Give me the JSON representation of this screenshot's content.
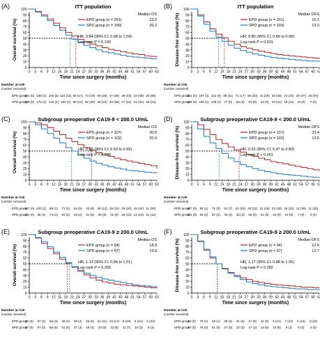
{
  "common": {
    "xlabel": "Time since surgery (months)",
    "x_ticks": [
      0,
      3,
      6,
      9,
      12,
      15,
      18,
      21,
      24,
      27,
      30,
      33,
      36,
      39,
      42,
      45,
      48,
      51,
      54,
      57,
      60,
      63
    ],
    "y_ticks": [
      "0",
      "10",
      "20",
      "30",
      "40",
      "50",
      "60",
      "70",
      "80",
      "90",
      "100"
    ],
    "risk_title": "Number at risk",
    "risk_subtitle": "(number censored)",
    "risk_ticks": [
      0,
      6,
      12,
      18,
      24,
      30,
      36,
      42,
      48,
      54,
      60
    ],
    "colors": {
      "epd": "#b22222",
      "spd": "#1f78b4"
    }
  },
  "chart_data": [
    {
      "type": "line",
      "panel_label": "(A)",
      "title": "ITT population",
      "ylabel": "Overall survival (%)",
      "xlim": [
        0,
        63
      ],
      "ylim": [
        0,
        100
      ],
      "legend_title": "Median OS",
      "legend": [
        {
          "label": "EPD group (n = 201)",
          "value": "23.0"
        },
        {
          "label": "SPD group (n = 199)",
          "value": "20.2"
        }
      ],
      "hr_text": "HR, 0.84 (95% CI, 0.68 to 1.04)",
      "logrank_text": "Log-rank P = 0.100",
      "medians": [
        23.0,
        20.2
      ],
      "series": [
        {
          "name": "EPD group",
          "x": [
            0,
            3,
            6,
            9,
            12,
            15,
            18,
            21,
            24,
            27,
            30,
            33,
            36,
            39,
            42,
            45,
            48,
            51,
            54,
            57,
            60,
            63
          ],
          "y": [
            100,
            96,
            90,
            83,
            76,
            68,
            60,
            54,
            48,
            44,
            40,
            37,
            34,
            31,
            29,
            27,
            25,
            23,
            22,
            20,
            19,
            18
          ]
        },
        {
          "name": "SPD group",
          "x": [
            0,
            3,
            6,
            9,
            12,
            15,
            18,
            21,
            24,
            27,
            30,
            33,
            36,
            39,
            42,
            45,
            48,
            51,
            54,
            57,
            60,
            63
          ],
          "y": [
            100,
            95,
            88,
            80,
            72,
            64,
            55,
            48,
            43,
            38,
            34,
            30,
            27,
            25,
            23,
            21,
            19,
            18,
            17,
            16,
            15,
            14
          ]
        }
      ],
      "risk_table": [
        {
          "name": "EPD group",
          "values": [
            "201 (0)",
            "188 (2)",
            "154 (5)",
            "116 (11)",
            "92 (17)",
            "74 (19)",
            "59 (26)",
            "47 (35)",
            "39 (43)",
            "33 (48)",
            "20 (58)"
          ]
        },
        {
          "name": "SPD group",
          "values": [
            "199 (0)",
            "175 (2)",
            "140 (2)",
            "105 (2)",
            "80 (10)",
            "60 (20)",
            "48 (23)",
            "34 (30)",
            "27 (31)",
            "21 (33)",
            "18 (23)"
          ]
        }
      ]
    },
    {
      "type": "line",
      "panel_label": "(B)",
      "title": "ITT population",
      "ylabel": "Disease-free survival (%)",
      "xlim": [
        0,
        63
      ],
      "ylim": [
        0,
        100
      ],
      "legend_title": "Median DFS",
      "legend": [
        {
          "label": "EPD group (n = 201)",
          "value": "16.1"
        },
        {
          "label": "SPD group (n = 199)",
          "value": "13.2"
        }
      ],
      "hr_text": "HR, 0.80 (95% CI, 0.66 to 0.98)",
      "logrank_text": "Log-rank P = 0.031",
      "medians": [
        16.1,
        13.2
      ],
      "series": [
        {
          "name": "EPD group",
          "x": [
            0,
            3,
            6,
            9,
            12,
            15,
            18,
            21,
            24,
            27,
            30,
            33,
            36,
            39,
            42,
            45,
            48,
            51,
            54,
            57,
            60,
            63
          ],
          "y": [
            100,
            90,
            78,
            66,
            57,
            51,
            45,
            40,
            36,
            33,
            30,
            28,
            26,
            24,
            22,
            21,
            20,
            19,
            18,
            17,
            16,
            15
          ]
        },
        {
          "name": "SPD group",
          "x": [
            0,
            3,
            6,
            9,
            12,
            15,
            18,
            21,
            24,
            27,
            30,
            33,
            36,
            39,
            42,
            45,
            48,
            51,
            54,
            57,
            60,
            63
          ],
          "y": [
            100,
            88,
            74,
            62,
            52,
            45,
            38,
            33,
            29,
            26,
            23,
            21,
            19,
            17,
            16,
            15,
            14,
            13,
            12,
            11,
            11,
            10
          ]
        }
      ],
      "risk_table": [
        {
          "name": "EPD group",
          "values": [
            "201 (0)",
            "167 (2)",
            "121 (5)",
            "88 (11)",
            "71 (17)",
            "55 (20)",
            "41 (25)",
            "33 (30)",
            "24 (34)",
            "20 (37)",
            "16 (40)"
          ]
        },
        {
          "name": "SPD group",
          "values": [
            "199 (0)",
            "162 (1)",
            "108 (1)",
            "77 (0)",
            "56 (6)",
            "43 (8)",
            "34 (8)",
            "23 (11)",
            "18 (12)",
            "13 (0)",
            "7 (0)"
          ]
        }
      ]
    },
    {
      "type": "line",
      "panel_label": "(C)",
      "title": "Subgroup preoperative CA19-9 < 200.0 U/mL",
      "ylabel": "Overall survival (%)",
      "xlim": [
        0,
        63
      ],
      "ylim": [
        0,
        100
      ],
      "legend_title": "Median OS",
      "legend": [
        {
          "label": "EPD group (n = 107)",
          "value": "30.8"
        },
        {
          "label": "SPD group (n = 102)",
          "value": "20.9"
        }
      ],
      "hr_text": "HR, 0.68 (95% CI, 0.50 to 0.92)",
      "logrank_text": "Log-rank P = 0.009",
      "medians": [
        30.8,
        20.9
      ],
      "series": [
        {
          "name": "EPD group",
          "x": [
            0,
            3,
            6,
            9,
            12,
            15,
            18,
            21,
            24,
            27,
            30,
            33,
            36,
            39,
            42,
            45,
            48,
            51,
            54,
            57,
            60,
            63
          ],
          "y": [
            100,
            98,
            95,
            90,
            84,
            78,
            72,
            66,
            61,
            56,
            51,
            47,
            44,
            41,
            38,
            35,
            33,
            31,
            29,
            27,
            25,
            20
          ]
        },
        {
          "name": "SPD group",
          "x": [
            0,
            3,
            6,
            9,
            12,
            15,
            18,
            21,
            24,
            27,
            30,
            33,
            36,
            39,
            42,
            45,
            48,
            51,
            54,
            57,
            60,
            63
          ],
          "y": [
            100,
            95,
            88,
            80,
            72,
            64,
            56,
            50,
            44,
            38,
            33,
            29,
            26,
            23,
            21,
            19,
            17,
            16,
            15,
            14,
            13,
            12
          ]
        }
      ],
      "risk_table": [
        {
          "name": "EPD group",
          "values": [
            "107 (0)",
            "103 (1)",
            "88 (1)",
            "71 (4)",
            "54 (5)",
            "43 (8)",
            "36 (12)",
            "29 (16)",
            "25 (20)",
            "15 (22)",
            "11 (26)"
          ]
        },
        {
          "name": "SPD group",
          "values": [
            "102 (0)",
            "95 (1)",
            "74 (1)",
            "54 (2)",
            "43 (2)",
            "31 (5)",
            "25 (6)",
            "21 (8)",
            "16 (12)",
            "14 (13)",
            "11 (12)"
          ]
        }
      ]
    },
    {
      "type": "line",
      "panel_label": "(D)",
      "title": "Subgroup preoperative CA19-9 < 200.0 U/mL",
      "ylabel": "Disease-free survival (%)",
      "xlim": [
        0,
        63
      ],
      "ylim": [
        0,
        100
      ],
      "legend_title": "Median DFS",
      "legend": [
        {
          "label": "EPD group (n = 107)",
          "value": "23.4"
        },
        {
          "label": "SPD group (n = 102)",
          "value": "13.5"
        }
      ],
      "hr_text": "HR, 0.62 (95% CI, 0.47 to 0.83)",
      "logrank_text": "Log-rank P < 0.001",
      "medians": [
        23.4,
        13.5
      ],
      "series": [
        {
          "name": "EPD group",
          "x": [
            0,
            3,
            6,
            9,
            12,
            15,
            18,
            21,
            24,
            27,
            30,
            33,
            36,
            39,
            42,
            45,
            48,
            51,
            54,
            57,
            60,
            63
          ],
          "y": [
            100,
            95,
            87,
            78,
            70,
            63,
            57,
            52,
            48,
            44,
            41,
            38,
            35,
            32,
            30,
            28,
            26,
            24,
            22,
            20,
            18,
            16
          ]
        },
        {
          "name": "SPD group",
          "x": [
            0,
            3,
            6,
            9,
            12,
            15,
            18,
            21,
            24,
            27,
            30,
            33,
            36,
            39,
            42,
            45,
            48,
            51,
            54,
            57,
            60,
            63
          ],
          "y": [
            100,
            88,
            75,
            64,
            54,
            46,
            38,
            32,
            27,
            23,
            20,
            17,
            15,
            13,
            11,
            10,
            9,
            8,
            7,
            6,
            5,
            4
          ]
        }
      ],
      "risk_table": [
        {
          "name": "EPD group",
          "values": [
            "107 (0)",
            "95 (1)",
            "71 (3)",
            "61 (7)",
            "51 (10)",
            "40 (11)",
            "31 (16)",
            "23 (18)",
            "16 (22)",
            "12 (26)",
            "11 (26)"
          ]
        },
        {
          "name": "SPD group",
          "values": [
            "102 (0)",
            "83 (1)",
            "57 (2)",
            "40 (2)",
            "32 (3)",
            "26 (2)",
            "21 (5)",
            "16 (8)",
            "10 (9)",
            "7 (0)",
            "3 (0)"
          ]
        }
      ]
    },
    {
      "type": "line",
      "panel_label": "(E)",
      "title": "Subgroup preoperative CA19-9 ≥ 200.0 U/mL",
      "ylabel": "Overall survival (%)",
      "xlim": [
        0,
        63
      ],
      "ylim": [
        0,
        100
      ],
      "legend_title": "Median OS",
      "legend": [
        {
          "label": "EPD group (n = 94)",
          "value": "18.8"
        },
        {
          "label": "SPD group (n = 97)",
          "value": "19.9"
        }
      ],
      "hr_text": "HR, 1.13 (95% CI, 0.84 to 1.51)",
      "logrank_text": "Log-rank P = 0.395",
      "medians": [
        18.8,
        19.9
      ],
      "series": [
        {
          "name": "EPD group",
          "x": [
            0,
            3,
            6,
            9,
            12,
            15,
            18,
            21,
            24,
            27,
            30,
            33,
            36,
            39,
            42,
            45,
            48,
            51,
            54,
            57,
            60,
            63
          ],
          "y": [
            100,
            94,
            85,
            76,
            67,
            58,
            51,
            44,
            37,
            31,
            26,
            22,
            19,
            17,
            15,
            14,
            13,
            12,
            11,
            10,
            9,
            8
          ]
        },
        {
          "name": "SPD group",
          "x": [
            0,
            3,
            6,
            9,
            12,
            15,
            18,
            21,
            24,
            27,
            30,
            33,
            36,
            39,
            42,
            45,
            48,
            51,
            54,
            57,
            60,
            63
          ],
          "y": [
            100,
            95,
            88,
            79,
            70,
            61,
            52,
            45,
            39,
            34,
            30,
            27,
            24,
            22,
            20,
            18,
            16,
            14,
            13,
            12,
            11,
            10
          ]
        }
      ],
      "risk_table": [
        {
          "name": "EPD group",
          "values": [
            "94 (0)",
            "87 (1)",
            "66 (3)",
            "48 (4)",
            "38 (4)",
            "26 (8)",
            "21 (11)",
            "14 (17)",
            "8 (19)",
            "6 (21)",
            "2 (23)"
          ]
        },
        {
          "name": "SPD group",
          "values": [
            "97 (0)",
            "87 (0)",
            "66 (0)",
            "51 (0)",
            "37 (3)",
            "29 (4)",
            "23 (5)",
            "13 (8)",
            "11 (7)",
            "10 (3)",
            "6 (3)"
          ]
        }
      ]
    },
    {
      "type": "line",
      "panel_label": "(F)",
      "title": "Subgroup preoperative CA19-9 ≥ 200.0 U/mL",
      "ylabel": "Disease-free survival (%)",
      "xlim": [
        0,
        63
      ],
      "ylim": [
        0,
        100
      ],
      "legend_title": "Median DFS",
      "legend": [
        {
          "label": "EPD group (n = 94)",
          "value": "12.6"
        },
        {
          "label": "SPD group (n = 97)",
          "value": "12.7"
        }
      ],
      "hr_text": "HR, 1.17 (95% CI, 0.88 to 1.56)",
      "logrank_text": "Log-rank P = 0.282",
      "medians": [
        12.6,
        12.7
      ],
      "series": [
        {
          "name": "EPD group",
          "x": [
            0,
            3,
            6,
            9,
            12,
            15,
            18,
            21,
            24,
            27,
            30,
            33,
            36,
            39,
            42,
            45,
            48,
            51,
            54,
            57,
            60,
            63
          ],
          "y": [
            100,
            88,
            73,
            60,
            50,
            42,
            35,
            30,
            26,
            23,
            20,
            18,
            16,
            15,
            14,
            13,
            12,
            11,
            10,
            10,
            9,
            9
          ]
        },
        {
          "name": "SPD group",
          "x": [
            0,
            3,
            6,
            9,
            12,
            15,
            18,
            21,
            24,
            27,
            30,
            33,
            36,
            39,
            42,
            45,
            48,
            51,
            54,
            57,
            60,
            63
          ],
          "y": [
            100,
            89,
            75,
            62,
            50,
            41,
            34,
            28,
            23,
            19,
            16,
            14,
            12,
            11,
            10,
            9,
            8,
            7,
            7,
            6,
            6,
            5
          ]
        }
      ],
      "risk_table": [
        {
          "name": "EPD group",
          "values": [
            "94 (0)",
            "76 (1)",
            "50 (1)",
            "26 (4)",
            "21 (6)",
            "17 (8)",
            "11 (9)",
            "9 (12)",
            "7 (12)",
            "4 (14)",
            "3 (15)"
          ]
        },
        {
          "name": "SPD group",
          "values": [
            "97 (0)",
            "79 (0)",
            "51 (0)",
            "37 (0)",
            "23 (3)",
            "17 (3)",
            "14 (6)",
            "10 (6)",
            "8 (3)",
            "6 (3)",
            "4 (0)"
          ]
        }
      ]
    }
  ]
}
